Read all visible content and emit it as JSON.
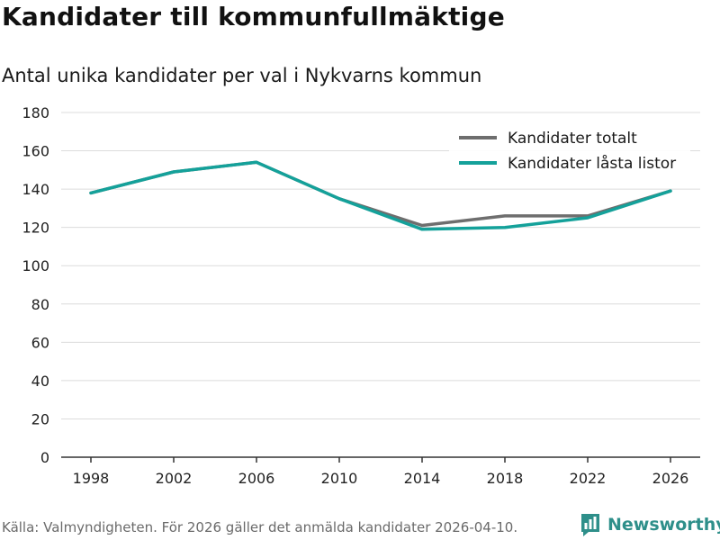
{
  "header": {
    "title": "Kandidater till kommunfullmäktige",
    "subtitle": "Antal unika kandidater per val i Nykvarns kommun"
  },
  "footer": {
    "source": "Källa: Valmyndigheten. För 2026 gäller det anmälda kandidater 2026-04-10.",
    "brand": "Newsworthy",
    "brand_icon": "newsworthy-logo-icon"
  },
  "colors": {
    "total": "#6e6e6e",
    "locked": "#14a19a",
    "grid": "#dcdcdc",
    "axis": "#333333",
    "brand": "#2e8f8a"
  },
  "chart_data": {
    "type": "line",
    "title": "Kandidater till kommunfullmäktige",
    "subtitle": "Antal unika kandidater per val i Nykvarns kommun",
    "xlabel": "",
    "ylabel": "",
    "x": [
      1998,
      2002,
      2006,
      2010,
      2014,
      2018,
      2022,
      2026
    ],
    "x_tick_labels": [
      "1998",
      "2002",
      "2006",
      "2010",
      "2014",
      "2018",
      "2022",
      "2026"
    ],
    "ylim": [
      0,
      180
    ],
    "y_ticks": [
      0,
      20,
      40,
      60,
      80,
      100,
      120,
      140,
      160,
      180
    ],
    "grid": true,
    "legend_position": "top-right",
    "series": [
      {
        "name": "Kandidater totalt",
        "color": "#6e6e6e",
        "values": [
          138,
          149,
          154,
          135,
          121,
          126,
          126,
          139
        ]
      },
      {
        "name": "Kandidater låsta listor",
        "color": "#14a19a",
        "values": [
          138,
          149,
          154,
          135,
          119,
          120,
          125,
          139
        ]
      }
    ]
  }
}
